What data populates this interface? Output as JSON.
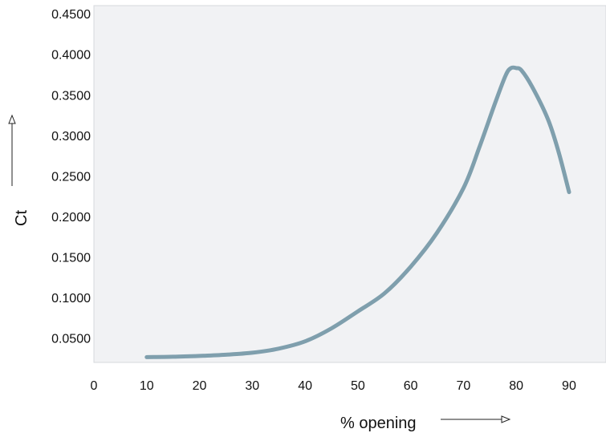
{
  "chart_data": {
    "type": "line",
    "xlabel": "% opening",
    "ylabel": "Ct",
    "xlim": [
      0,
      97
    ],
    "ylim": [
      0.02,
      0.46
    ],
    "x_ticks": [
      0,
      10,
      20,
      30,
      40,
      50,
      60,
      70,
      80,
      90
    ],
    "y_ticks": [
      0.05,
      0.1,
      0.15,
      0.2,
      0.25,
      0.3,
      0.35,
      0.4,
      0.45
    ],
    "y_tick_labels": [
      "0.0500",
      "0.1000",
      "0.1500",
      "0.2000",
      "0.2500",
      "0.3000",
      "0.3500",
      "0.4000",
      "0.4500"
    ],
    "grid": false,
    "plot_background": "#f1f2f4",
    "series": [
      {
        "color": "#7f9fad",
        "x": [
          10,
          15,
          20,
          25,
          30,
          35,
          40,
          45,
          50,
          55,
          60,
          65,
          70,
          73,
          76,
          78,
          79,
          80,
          81,
          83,
          86,
          88,
          90
        ],
        "y": [
          0.0265,
          0.027,
          0.028,
          0.0295,
          0.032,
          0.037,
          0.046,
          0.062,
          0.083,
          0.105,
          0.138,
          0.18,
          0.235,
          0.285,
          0.34,
          0.374,
          0.383,
          0.383,
          0.38,
          0.36,
          0.32,
          0.28,
          0.23
        ]
      }
    ]
  }
}
